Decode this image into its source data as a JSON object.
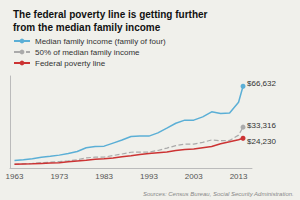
{
  "chart_data": {
    "type": "line",
    "title": "The federal poverty line is getting further\nfrom the median family income",
    "x": [
      1963,
      1965,
      1967,
      1969,
      1971,
      1973,
      1975,
      1977,
      1979,
      1981,
      1983,
      1985,
      1987,
      1989,
      1991,
      1993,
      1995,
      1997,
      1999,
      2001,
      2003,
      2005,
      2007,
      2009,
      2011,
      2013,
      2014
    ],
    "series": [
      {
        "name": "Median family income (family of four)",
        "color": "#5bafd6",
        "line_style": "solid",
        "values": [
          6200,
          6800,
          7600,
          8700,
          9500,
          10500,
          11800,
          13500,
          16500,
          17600,
          17800,
          20300,
          22800,
          25700,
          26000,
          26000,
          28600,
          32500,
          36500,
          39000,
          39000,
          41700,
          45800,
          44500,
          44900,
          53600,
          66632
        ]
      },
      {
        "name": "50% of median family income",
        "color": "#aaaaaa",
        "line_style": "dashed",
        "values": [
          3100,
          3400,
          3800,
          4350,
          4750,
          5250,
          5900,
          6750,
          8250,
          8800,
          8900,
          10150,
          11400,
          12850,
          13000,
          13000,
          14300,
          16250,
          18250,
          19500,
          19500,
          20850,
          22900,
          22250,
          22450,
          26800,
          33316
        ]
      },
      {
        "name": "Federal poverty line",
        "color": "#cc3333",
        "line_style": "solid",
        "values": [
          3100,
          3300,
          3400,
          3700,
          4000,
          4300,
          5000,
          5700,
          6300,
          7100,
          7500,
          8200,
          9100,
          10000,
          11000,
          11800,
          12500,
          13100,
          14200,
          15000,
          15500,
          16500,
          17500,
          19800,
          21400,
          23050,
          24230
        ]
      }
    ],
    "annotations": [
      {
        "text": "$66,632",
        "x": 2014,
        "y": 66632
      },
      {
        "text": "$33,316",
        "x": 2014,
        "y": 33316
      },
      {
        "text": "$24,230",
        "x": 2014,
        "y": 24230
      },
      {
        "text": "Sources: Census Bureau, Social Security Administration."
      }
    ],
    "xlim": [
      1962,
      2016
    ],
    "xticks": [
      1963,
      1973,
      1983,
      1993,
      2003,
      2013
    ],
    "ylim": [
      0,
      75000
    ],
    "tick_labels": "x",
    "grid": false,
    "legend": "upper left",
    "background_color": "#f0f0eb"
  }
}
